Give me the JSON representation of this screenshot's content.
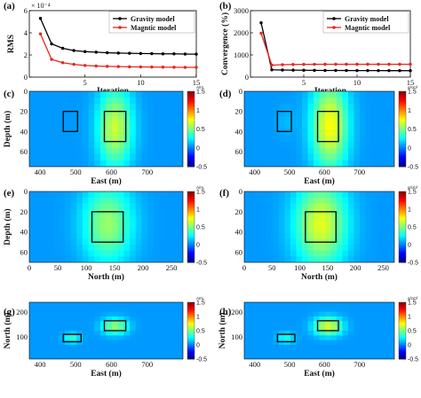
{
  "chart_data": [
    {
      "tag": "(a)",
      "type": "line",
      "xlabel": "Iteration",
      "ylabel": "RMS",
      "exponent": "× 10⁻⁴",
      "xlim": [
        0,
        15
      ],
      "ylim": [
        0,
        6
      ],
      "xticks": [
        5,
        10,
        15
      ],
      "yticks": [
        0,
        2,
        4,
        6
      ],
      "x": [
        1,
        2,
        3,
        4,
        5,
        6,
        7,
        8,
        9,
        10,
        11,
        12,
        13,
        14,
        15
      ],
      "series": [
        {
          "name": "Gravity model",
          "color": "#000000",
          "values": [
            5.3,
            3.0,
            2.6,
            2.4,
            2.3,
            2.25,
            2.2,
            2.17,
            2.15,
            2.13,
            2.12,
            2.1,
            2.1,
            2.08,
            2.07
          ]
        },
        {
          "name": "Magntic model",
          "color": "#e8251c",
          "values": [
            3.9,
            1.6,
            1.3,
            1.15,
            1.05,
            1.0,
            0.97,
            0.95,
            0.93,
            0.92,
            0.91,
            0.9,
            0.89,
            0.88,
            0.88
          ]
        }
      ],
      "legend": "top-right"
    },
    {
      "tag": "(b)",
      "type": "line",
      "xlabel": "Iteration",
      "ylabel": "Convergence (%)",
      "xlim": [
        0,
        15
      ],
      "ylim": [
        0,
        3000
      ],
      "xticks": [
        5,
        10,
        15
      ],
      "yticks": [
        0,
        1000,
        2000,
        3000
      ],
      "x": [
        1,
        2,
        3,
        4,
        5,
        6,
        7,
        8,
        9,
        10,
        11,
        12,
        13,
        14,
        15
      ],
      "series": [
        {
          "name": "Gravity model",
          "color": "#000000",
          "values": [
            2450,
            330,
            320,
            315,
            310,
            305,
            300,
            300,
            298,
            296,
            295,
            294,
            293,
            292,
            290
          ]
        },
        {
          "name": "Magntic model",
          "color": "#e8251c",
          "values": [
            1980,
            540,
            560,
            570,
            575,
            578,
            580,
            580,
            580,
            580,
            580,
            580,
            580,
            580,
            580
          ]
        }
      ],
      "legend": "top-right"
    },
    {
      "tag": "(c)",
      "type": "heatmap",
      "xlabel": "East (m)",
      "ylabel": "Depth (m)",
      "xlim": [
        370,
        800
      ],
      "ylim": [
        75,
        0
      ],
      "xticks": [
        400,
        500,
        600,
        700
      ],
      "yticks": [
        0,
        20,
        40,
        60
      ],
      "anomalies": [
        {
          "center_x": 610,
          "center_y": 36,
          "radius_x": 60,
          "radius_y": 50,
          "peak": 0.65
        },
        {
          "center_x": 490,
          "center_y": 32,
          "radius_x": 22,
          "radius_y": 16,
          "peak": 0.05
        }
      ],
      "boxes": [
        [
          465,
          505,
          20,
          40
        ],
        [
          580,
          640,
          20,
          50
        ]
      ],
      "colorbar": {
        "unit": "A/m",
        "ticks": [
          "1.5",
          "1",
          "0.5",
          "0",
          "-0.5"
        ]
      }
    },
    {
      "tag": "(d)",
      "type": "heatmap",
      "xlabel": "East (m)",
      "ylabel": "",
      "xlim": [
        370,
        800
      ],
      "ylim": [
        75,
        0
      ],
      "xticks": [
        400,
        500,
        600,
        700
      ],
      "yticks": [
        0,
        20,
        40,
        60
      ],
      "anomalies": [
        {
          "center_x": 615,
          "center_y": 34,
          "radius_x": 65,
          "radius_y": 55,
          "peak": 0.75
        },
        {
          "center_x": 490,
          "center_y": 30,
          "radius_x": 28,
          "radius_y": 18,
          "peak": 0.12
        }
      ],
      "boxes": [
        [
          465,
          505,
          20,
          40
        ],
        [
          580,
          640,
          20,
          50
        ]
      ],
      "colorbar": {
        "unit": "g/cm³",
        "ticks": [
          "1.5",
          "1",
          "0.5",
          "0",
          "-0.5"
        ]
      }
    },
    {
      "tag": "(e)",
      "type": "heatmap",
      "xlabel": "North (m)",
      "ylabel": "Depth (m)",
      "xlim": [
        0,
        270
      ],
      "ylim": [
        70,
        0
      ],
      "xticks": [
        0,
        50,
        100,
        150,
        200,
        250
      ],
      "yticks": [
        0,
        20,
        40,
        60
      ],
      "anomalies": [
        {
          "center_x": 138,
          "center_y": 32,
          "radius_x": 55,
          "radius_y": 48,
          "peak": 0.55
        }
      ],
      "boxes": [
        [
          110,
          165,
          20,
          50
        ]
      ],
      "colorbar": {
        "unit": "A/m",
        "ticks": [
          "1.5",
          "1",
          "0.5",
          "0",
          "-0.5"
        ]
      }
    },
    {
      "tag": "(f)",
      "type": "heatmap",
      "xlabel": "North (m)",
      "ylabel": "",
      "xlim": [
        0,
        270
      ],
      "ylim": [
        70,
        0
      ],
      "xticks": [
        0,
        50,
        100,
        150,
        200,
        250
      ],
      "yticks": [
        0,
        20,
        40,
        60
      ],
      "anomalies": [
        {
          "center_x": 138,
          "center_y": 32,
          "radius_x": 58,
          "radius_y": 52,
          "peak": 0.7
        }
      ],
      "boxes": [
        [
          110,
          165,
          20,
          50
        ]
      ],
      "colorbar": {
        "unit": "g/cm³",
        "ticks": [
          "1.5",
          "1",
          "0.5",
          "0",
          "-0.5"
        ]
      }
    },
    {
      "tag": "(g)",
      "type": "heatmap",
      "xlabel": "East (m)",
      "ylabel": "North (m)",
      "xlim": [
        370,
        800
      ],
      "ylim": [
        10,
        240
      ],
      "xticks": [
        400,
        500,
        600,
        700
      ],
      "yticks": [
        100,
        200
      ],
      "anomalies": [
        {
          "center_x": 610,
          "center_y": 142,
          "radius_x": 45,
          "radius_y": 40,
          "peak": 0.55
        },
        {
          "center_x": 490,
          "center_y": 95,
          "radius_x": 28,
          "radius_y": 25,
          "peak": 0.35
        }
      ],
      "boxes": [
        [
          580,
          640,
          125,
          165
        ],
        [
          465,
          515,
          80,
          110
        ]
      ],
      "colorbar": {
        "unit": "A/m",
        "ticks": [
          "1.5",
          "1",
          "0.5",
          "0",
          "-0.5"
        ]
      }
    },
    {
      "tag": "(h)",
      "type": "heatmap",
      "xlabel": "East (m)",
      "ylabel": "North (m)",
      "xlim": [
        370,
        800
      ],
      "ylim": [
        10,
        240
      ],
      "xticks": [
        400,
        500,
        600,
        700
      ],
      "yticks": [
        100,
        200
      ],
      "anomalies": [
        {
          "center_x": 610,
          "center_y": 142,
          "radius_x": 50,
          "radius_y": 45,
          "peak": 0.7
        },
        {
          "center_x": 490,
          "center_y": 95,
          "radius_x": 30,
          "radius_y": 27,
          "peak": 0.3
        }
      ],
      "boxes": [
        [
          580,
          640,
          125,
          165
        ],
        [
          465,
          515,
          80,
          110
        ]
      ],
      "colorbar": {
        "unit": "g/cm³",
        "ticks": [
          "1.5",
          "1",
          "0.5",
          "0",
          "-0.5"
        ]
      }
    }
  ],
  "colormap": {
    "vmin": -0.5,
    "vmax": 1.5,
    "background_value": 0.05
  }
}
